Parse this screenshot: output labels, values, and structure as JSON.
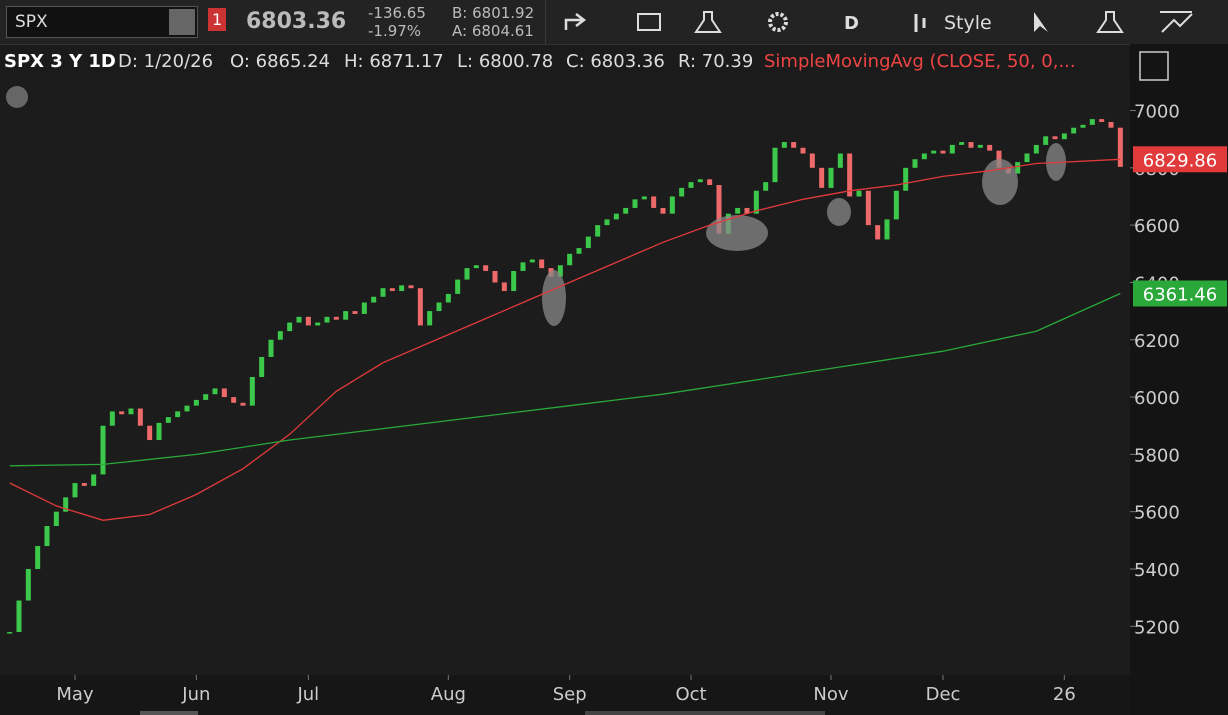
{
  "toolbar": {
    "symbol": "SPX",
    "badge": "1",
    "last": "6803.36",
    "change": "-136.65",
    "change_pct": "-1.97%",
    "bid": "B: 6801.92",
    "ask": "A: 6804.61",
    "aggregation": "D",
    "style": "Style"
  },
  "info_bar": {
    "title": "SPX 3 Y 1D",
    "date": "D: 1/20/26",
    "open": "O: 6865.24",
    "high": "H: 6871.17",
    "low": "L: 6800.78",
    "close": "C: 6803.36",
    "range": "R: 70.39",
    "study": "SimpleMovingAvg (CLOSE, 50, 0,..."
  },
  "chart_data": {
    "type": "candlestick",
    "values": [
      5180,
      5290,
      5400,
      5480,
      5550,
      5600,
      5650,
      5700,
      5690,
      5730,
      5900,
      5950,
      5940,
      5960,
      5900,
      5850,
      5910,
      5930,
      5950,
      5970,
      5990,
      6010,
      6030,
      6000,
      5980,
      5970,
      6070,
      6140,
      6200,
      6230,
      6260,
      6280,
      6250,
      6260,
      6280,
      6270,
      6300,
      6290,
      6330,
      6350,
      6380,
      6370,
      6390,
      6380,
      6250,
      6300,
      6330,
      6360,
      6410,
      6450,
      6460,
      6440,
      6400,
      6370,
      6440,
      6470,
      6480,
      6450,
      6420,
      6460,
      6500,
      6520,
      6560,
      6600,
      6620,
      6640,
      6660,
      6690,
      6700,
      6660,
      6640,
      6700,
      6730,
      6750,
      6760,
      6740,
      6570,
      6640,
      6660,
      6640,
      6720,
      6750,
      6870,
      6890,
      6870,
      6850,
      6800,
      6730,
      6800,
      6850,
      6700,
      6720,
      6600,
      6550,
      6620,
      6720,
      6800,
      6830,
      6850,
      6860,
      6850,
      6880,
      6890,
      6870,
      6880,
      6860,
      6800,
      6780,
      6820,
      6850,
      6880,
      6910,
      6900,
      6920,
      6940,
      6950,
      6970,
      6960,
      6940,
      6803.36
    ],
    "up_color": "#3cc84a",
    "down_color": "#ee6a6a",
    "series": [
      {
        "color": "#e03a3a",
        "x": [
          0,
          5,
          10,
          15,
          20,
          25,
          30,
          35,
          40,
          45,
          50,
          55,
          60,
          65,
          70,
          75,
          80,
          85,
          90,
          95,
          100,
          105,
          110,
          119
        ],
        "values": [
          5700,
          5620,
          5570,
          5590,
          5660,
          5750,
          5870,
          6020,
          6120,
          6190,
          6260,
          6330,
          6400,
          6470,
          6540,
          6600,
          6650,
          6690,
          6720,
          6740,
          6770,
          6790,
          6815,
          6829.86
        ]
      },
      {
        "color": "#2aa83a",
        "x": [
          0,
          10,
          20,
          30,
          40,
          50,
          60,
          70,
          80,
          90,
          100,
          110,
          119
        ],
        "values": [
          5760,
          5765,
          5800,
          5850,
          5890,
          5930,
          5970,
          6010,
          6060,
          6110,
          6160,
          6230,
          6361.46
        ]
      }
    ],
    "xlim": [
      -0.5,
      119.5
    ],
    "xticks": [
      {
        "value": 7,
        "label": "May"
      },
      {
        "value": 20,
        "label": "Jun"
      },
      {
        "value": 32,
        "label": "Jul"
      },
      {
        "value": 47,
        "label": "Aug"
      },
      {
        "value": 60,
        "label": "Sep"
      },
      {
        "value": 73,
        "label": "Oct"
      },
      {
        "value": 88,
        "label": "Nov"
      },
      {
        "value": 100,
        "label": "Dec"
      },
      {
        "value": 113,
        "label": "26"
      }
    ],
    "ylim": [
      5030,
      7110
    ],
    "yticks": [
      5200,
      5400,
      5600,
      5800,
      6000,
      6200,
      6400,
      6600,
      6800,
      7000
    ]
  }
}
